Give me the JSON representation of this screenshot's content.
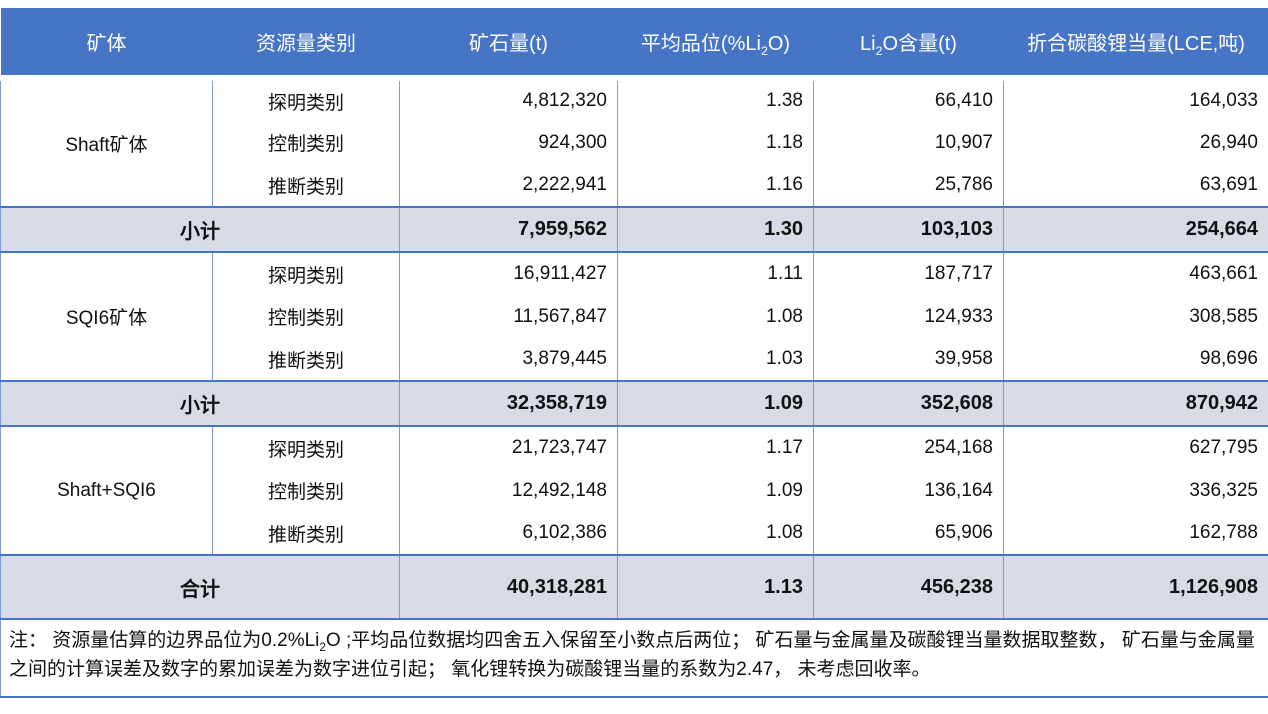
{
  "header": {
    "orebody": "矿体",
    "category": "资源量类别",
    "ore_tonnage": "矿石量(t)",
    "avg_grade_pre": "平均品位(%Li",
    "avg_grade_sub": "2",
    "avg_grade_post": "O)",
    "li2o_pre": "Li",
    "li2o_sub": "2",
    "li2o_post": "O含量(t)",
    "lce": "折合碳酸锂当量(LCE,吨)"
  },
  "sections": [
    {
      "orebody": "Shaft矿体",
      "rows": [
        {
          "category": "探明类别",
          "ore": "4,812,320",
          "grade": "1.38",
          "li2o": "66,410",
          "lce": "164,033"
        },
        {
          "category": "控制类别",
          "ore": "924,300",
          "grade": "1.18",
          "li2o": "10,907",
          "lce": "26,940"
        },
        {
          "category": "推断类别",
          "ore": "2,222,941",
          "grade": "1.16",
          "li2o": "25,786",
          "lce": "63,691"
        }
      ],
      "subtotal": {
        "label": "小计",
        "ore": "7,959,562",
        "grade": "1.30",
        "li2o": "103,103",
        "lce": "254,664"
      }
    },
    {
      "orebody": "SQI6矿体",
      "rows": [
        {
          "category": "探明类别",
          "ore": "16,911,427",
          "grade": "1.11",
          "li2o": "187,717",
          "lce": "463,661"
        },
        {
          "category": "控制类别",
          "ore": "11,567,847",
          "grade": "1.08",
          "li2o": "124,933",
          "lce": "308,585"
        },
        {
          "category": "推断类别",
          "ore": "3,879,445",
          "grade": "1.03",
          "li2o": "39,958",
          "lce": "98,696"
        }
      ],
      "subtotal": {
        "label": "小计",
        "ore": "32,358,719",
        "grade": "1.09",
        "li2o": "352,608",
        "lce": "870,942"
      }
    },
    {
      "orebody": "Shaft+SQI6",
      "rows": [
        {
          "category": "探明类别",
          "ore": "21,723,747",
          "grade": "1.17",
          "li2o": "254,168",
          "lce": "627,795"
        },
        {
          "category": "控制类别",
          "ore": "12,492,148",
          "grade": "1.09",
          "li2o": "136,164",
          "lce": "336,325"
        },
        {
          "category": "推断类别",
          "ore": "6,102,386",
          "grade": "1.08",
          "li2o": "65,906",
          "lce": "162,788"
        }
      ],
      "subtotal": {
        "label": "合计",
        "ore": "40,318,281",
        "grade": "1.13",
        "li2o": "456,238",
        "lce": "1,126,908"
      }
    }
  ],
  "note": {
    "part1": "注： 资源量估算的边界品位为0.2%Li",
    "sub": "2",
    "part2": "O ;平均品位数据均四舍五入保留至小数点后两位； 矿石量与金属量及碳酸锂当量数据取整数， 矿石量与金属量之间的计算误差及数字的累加误差为数字进位引起； 氧化锂转换为碳酸锂当量的系数为2.47， 未考虑回收率。"
  },
  "colors": {
    "header_bg": "#4575C4",
    "header_text": "#FFFFFF",
    "subtotal_bg": "#D6DBE4",
    "border_strong": "#4575C4",
    "border_light": "#7B9BD2"
  }
}
